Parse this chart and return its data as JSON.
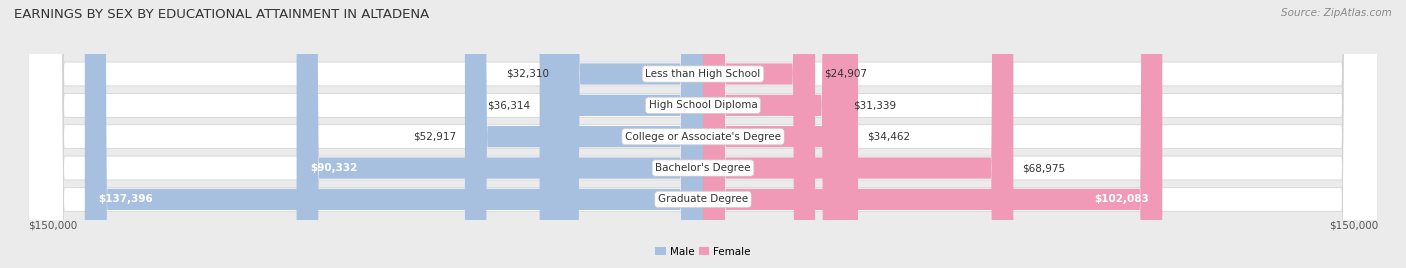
{
  "title": "EARNINGS BY SEX BY EDUCATIONAL ATTAINMENT IN ALTADENA",
  "source": "Source: ZipAtlas.com",
  "categories": [
    "Less than High School",
    "High School Diploma",
    "College or Associate's Degree",
    "Bachelor's Degree",
    "Graduate Degree"
  ],
  "male_values": [
    32310,
    36314,
    52917,
    90332,
    137396
  ],
  "female_values": [
    24907,
    31339,
    34462,
    68975,
    102083
  ],
  "male_color": "#a8c0e0",
  "female_color": "#f09ab8",
  "male_label": "Male",
  "female_label": "Female",
  "max_val": 150000,
  "bg_color": "#ebebeb",
  "row_bg_color": "#f8f8f8",
  "title_fontsize": 9.5,
  "source_fontsize": 7.5,
  "cat_fontsize": 7.5,
  "value_fontsize": 7.5,
  "axis_label": "$150,000",
  "male_inside_threshold": 80000,
  "female_inside_threshold": 80000
}
